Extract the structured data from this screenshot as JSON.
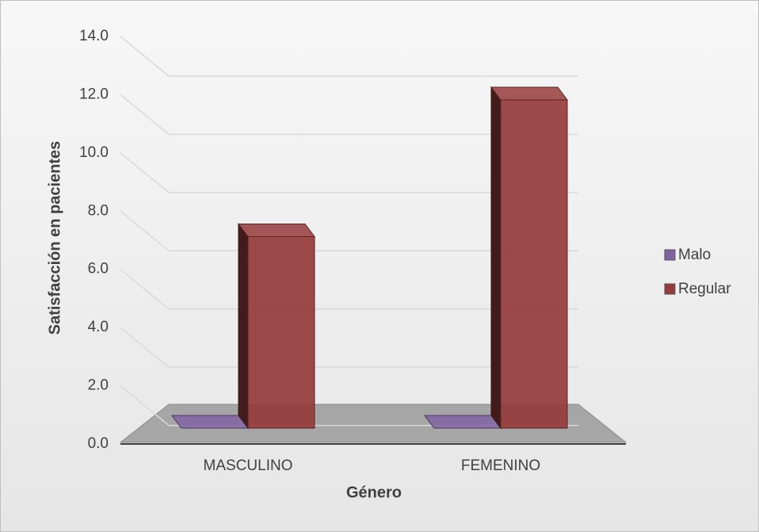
{
  "chart_data": {
    "type": "bar3d",
    "categories": [
      "MASCULINO",
      "FEMENINO"
    ],
    "series": [
      {
        "name": "Malo",
        "color": "#8064a2",
        "values": [
          0,
          0
        ]
      },
      {
        "name": "Regular",
        "color": "#963b3b",
        "values": [
          7,
          12
        ]
      }
    ],
    "ylim": [
      0,
      14
    ],
    "yticks": [
      {
        "value": 0,
        "label": "0.0"
      },
      {
        "value": 2,
        "label": "2.0"
      },
      {
        "value": 4,
        "label": "4.0"
      },
      {
        "value": 6,
        "label": "6.0"
      },
      {
        "value": 8,
        "label": "8.0"
      },
      {
        "value": 10,
        "label": "10.0"
      },
      {
        "value": 12,
        "label": "12.0"
      },
      {
        "value": 14,
        "label": "14.0"
      }
    ],
    "xlabel": "Género",
    "ylabel": "Satisfacción en pacientes",
    "grid": true,
    "legend": "right"
  }
}
